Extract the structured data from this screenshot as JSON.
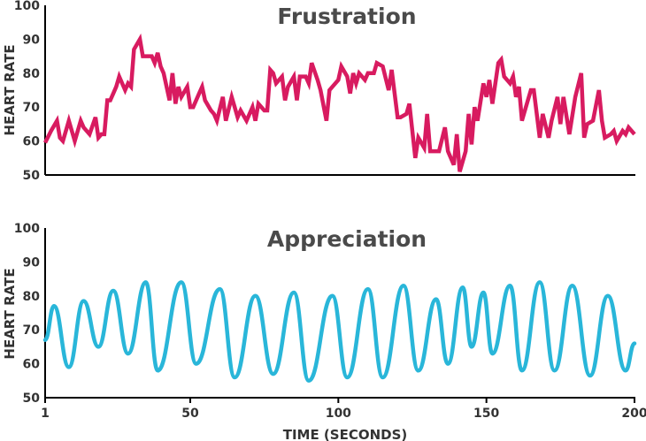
{
  "chart_data": [
    {
      "type": "line",
      "title": "Frustration",
      "ylabel": "HEART RATE",
      "xlabel": "",
      "xlim": [
        1,
        200
      ],
      "ylim": [
        50,
        100
      ],
      "yticks": [
        "50",
        "60",
        "70",
        "80",
        "90",
        "100"
      ],
      "color": "#d81b60",
      "grid": false,
      "x": [
        1,
        3,
        5,
        6,
        7,
        9,
        11,
        13,
        14,
        16,
        18,
        19,
        20,
        21,
        22,
        23,
        24,
        25,
        26,
        28,
        29,
        30,
        31,
        33,
        34,
        35,
        37,
        38,
        39,
        40,
        41,
        43,
        44,
        45,
        46,
        47,
        49,
        50,
        51,
        53,
        54,
        55,
        57,
        58,
        59,
        61,
        62,
        64,
        65,
        66,
        67,
        69,
        71,
        72,
        73,
        75,
        76,
        77,
        78,
        79,
        81,
        82,
        83,
        85,
        86,
        87,
        89,
        90,
        91,
        93,
        94,
        96,
        97,
        98,
        100,
        101,
        103,
        104,
        105,
        106,
        107,
        109,
        110,
        111,
        112,
        113,
        115,
        117,
        118,
        120,
        121,
        123,
        124,
        126,
        127,
        129,
        130,
        131,
        134,
        136,
        137,
        139,
        140,
        141,
        143,
        144,
        145,
        146,
        147,
        149,
        150,
        151,
        152,
        154,
        155,
        156,
        158,
        159,
        160,
        161,
        162,
        164,
        165,
        166,
        168,
        169,
        171,
        172,
        174,
        175,
        176,
        178,
        180,
        182,
        183,
        184,
        186,
        188,
        189,
        190,
        192,
        193,
        194,
        196,
        197,
        198,
        200
      ],
      "y": [
        59.5,
        63,
        66,
        61,
        60,
        66,
        60,
        66,
        64,
        62,
        67,
        61,
        62,
        62,
        72,
        72,
        74,
        76,
        79,
        75,
        77,
        76,
        87,
        90,
        85,
        85,
        85,
        83,
        86,
        82,
        80,
        72,
        80,
        71,
        76,
        73,
        76,
        70,
        70,
        74,
        76,
        72,
        69,
        68,
        66,
        73,
        66,
        73,
        70,
        67,
        69,
        66,
        70,
        66,
        71,
        69,
        69,
        81,
        80,
        77,
        79,
        72,
        76,
        79,
        72,
        79,
        79,
        77,
        83,
        78,
        75,
        66,
        75,
        76,
        78,
        82,
        79,
        74,
        80,
        77,
        80,
        78,
        80,
        80,
        80,
        83,
        82,
        75,
        81,
        67,
        67,
        68,
        71,
        55,
        61,
        58,
        68,
        57,
        57,
        64,
        57,
        53,
        62,
        51,
        57,
        68,
        59,
        70,
        66,
        77,
        73,
        78,
        71,
        83,
        84,
        79,
        77,
        79,
        73,
        76,
        66,
        72,
        75,
        75,
        61,
        68,
        61,
        66,
        73,
        65,
        73,
        62,
        73,
        80,
        61,
        65,
        66,
        75,
        66,
        61,
        62,
        63,
        60,
        63,
        62,
        64,
        62
      ],
      "line_name": "frustration-line"
    },
    {
      "type": "line",
      "title": "Appreciation",
      "ylabel": "HEART RATE",
      "xlabel": "TIME (SECONDS)",
      "xlim": [
        1,
        200
      ],
      "ylim": [
        50,
        100
      ],
      "yticks": [
        "50",
        "60",
        "70",
        "80",
        "90",
        "100"
      ],
      "xticks": [
        "1",
        "50",
        "100",
        "150",
        "200"
      ],
      "color": "#29b6d9",
      "grid": false,
      "extrema": [
        [
          1,
          67
        ],
        [
          4,
          77
        ],
        [
          9,
          59
        ],
        [
          14,
          78.5
        ],
        [
          19,
          65
        ],
        [
          24,
          81.5
        ],
        [
          29,
          63
        ],
        [
          35,
          84
        ],
        [
          39,
          58
        ],
        [
          47,
          84
        ],
        [
          52,
          60
        ],
        [
          60,
          82
        ],
        [
          65,
          56
        ],
        [
          72,
          80
        ],
        [
          78,
          57
        ],
        [
          85,
          81
        ],
        [
          90,
          55
        ],
        [
          98,
          80
        ],
        [
          103,
          56
        ],
        [
          110,
          82
        ],
        [
          115,
          56
        ],
        [
          122,
          83
        ],
        [
          127,
          58
        ],
        [
          133,
          79
        ],
        [
          137,
          60
        ],
        [
          142,
          82.5
        ],
        [
          145,
          65
        ],
        [
          149,
          81
        ],
        [
          152,
          63
        ],
        [
          158,
          83
        ],
        [
          162,
          58
        ],
        [
          168,
          84
        ],
        [
          173,
          58
        ],
        [
          179,
          83
        ],
        [
          185,
          56.5
        ],
        [
          191,
          80
        ],
        [
          197,
          58
        ],
        [
          200,
          66
        ]
      ],
      "line_name": "appreciation-line"
    }
  ]
}
